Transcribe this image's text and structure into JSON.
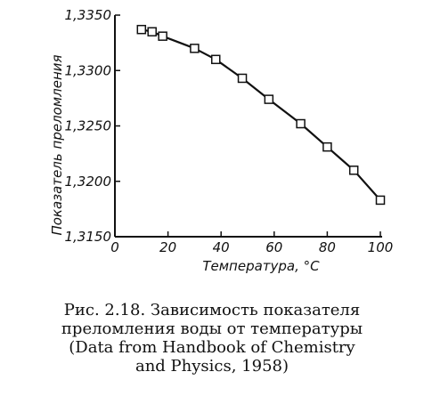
{
  "chart_data": {
    "type": "line",
    "title": "",
    "xlabel": "Температура, °С",
    "ylabel": "Показатель преломления",
    "xlim": [
      0,
      100
    ],
    "ylim": [
      1.315,
      1.335
    ],
    "x_ticks": [
      0,
      20,
      40,
      60,
      80,
      100
    ],
    "y_ticks": [
      1.315,
      1.32,
      1.325,
      1.33,
      1.335
    ],
    "x_tick_labels": [
      "0",
      "20",
      "40",
      "60",
      "80",
      "100"
    ],
    "y_tick_labels": [
      "1,3150",
      "1,3200",
      "1,3250",
      "1,3300",
      "1,3350"
    ],
    "grid": false,
    "legend": "none",
    "marker": "square",
    "series": [
      {
        "x": [
          10,
          14,
          18,
          30,
          38,
          48,
          58,
          70,
          80,
          90,
          100
        ],
        "y": [
          1.3337,
          1.3335,
          1.3331,
          1.332,
          1.331,
          1.3293,
          1.3274,
          1.3252,
          1.3231,
          1.321,
          1.3183
        ]
      }
    ]
  },
  "caption": {
    "lines": [
      "Рис. 2.18. Зависимость показателя",
      "преломления воды от температуры",
      "(Data from Handbook of Chemistry",
      "and Physics, 1958)"
    ]
  }
}
